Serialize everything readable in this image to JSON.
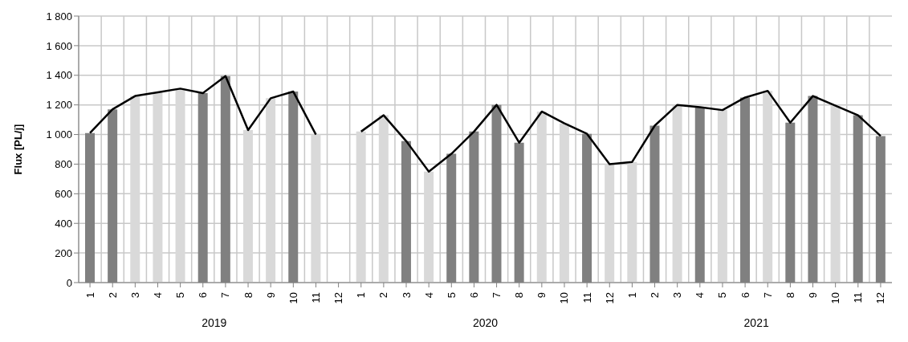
{
  "chart_data": {
    "type": "bar",
    "ylabel": "Flux [PL/j]",
    "categories": [
      "1",
      "2",
      "3",
      "4",
      "5",
      "6",
      "7",
      "8",
      "9",
      "10",
      "11",
      "12",
      "1",
      "2",
      "3",
      "4",
      "5",
      "6",
      "7",
      "8",
      "9",
      "10",
      "11",
      "12",
      "1",
      "2",
      "3",
      "4",
      "5",
      "6",
      "7",
      "8",
      "9",
      "10",
      "11",
      "12"
    ],
    "series": [
      {
        "colors": [
          "#808080",
          "#808080",
          "#d9d9d9",
          "#d9d9d9",
          "#d9d9d9",
          "#808080",
          "#808080",
          "#d9d9d9",
          "#d9d9d9",
          "#808080",
          "#d9d9d9",
          null,
          "#d9d9d9",
          "#d9d9d9",
          "#808080",
          "#d9d9d9",
          "#808080",
          "#808080",
          "#808080",
          "#808080",
          "#d9d9d9",
          "#d9d9d9",
          "#808080",
          "#d9d9d9",
          "#d9d9d9",
          "#808080",
          "#d9d9d9",
          "#808080",
          "#d9d9d9",
          "#808080",
          "#d9d9d9",
          "#808080",
          "#808080",
          "#d9d9d9",
          "#808080",
          "#808080"
        ],
        "values": [
          1010,
          1170,
          1260,
          1285,
          1310,
          1280,
          1395,
          1030,
          1245,
          1290,
          1000,
          null,
          1020,
          1130,
          955,
          750,
          870,
          1020,
          1200,
          945,
          1155,
          1075,
          1005,
          800,
          815,
          1060,
          1200,
          1185,
          1165,
          1250,
          1295,
          1080,
          1260,
          1195,
          1130,
          990
        ]
      },
      {
        "type": "line",
        "color": "#000000",
        "values": [
          1010,
          1170,
          1260,
          1285,
          1310,
          1280,
          1395,
          1030,
          1245,
          1290,
          1000,
          null,
          1020,
          1130,
          955,
          750,
          870,
          1020,
          1200,
          945,
          1155,
          1075,
          1005,
          800,
          815,
          1060,
          1200,
          1185,
          1165,
          1250,
          1295,
          1080,
          1260,
          1195,
          1130,
          990
        ]
      }
    ],
    "ylim": [
      0,
      1800
    ],
    "yticks": [
      0,
      200,
      400,
      600,
      800,
      {
        "value": 1000,
        "label": "1 000"
      },
      {
        "value": 1200,
        "label": "1 200"
      },
      {
        "value": 1400,
        "label": "1 400"
      },
      {
        "value": 1600,
        "label": "1 600"
      },
      {
        "value": 1800,
        "label": "1 800"
      }
    ],
    "grid": true,
    "marker": "none",
    "annotations": [
      "2019",
      "2020",
      "2021"
    ]
  }
}
